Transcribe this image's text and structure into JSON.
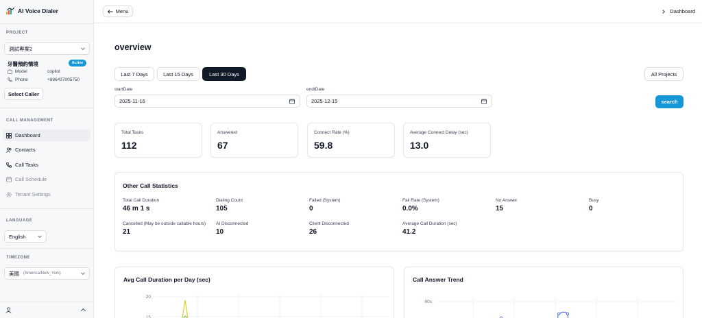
{
  "sidebar": {
    "app_title": "AI Voice Dialer",
    "project_label": "PROJECT",
    "project_select": "測試專案2",
    "scenario": {
      "name": "牙醫預約情境",
      "status": "Active",
      "model_key": "Model",
      "model_value": "copilot",
      "phone_key": "Phone",
      "phone_value": "+886437005750"
    },
    "select_caller": "Select Caller",
    "call_mgmt_label": "CALL MANAGEMENT",
    "nav": [
      {
        "label": "Dashboard",
        "icon": "dashboard-icon",
        "active": true
      },
      {
        "label": "Contacts",
        "icon": "users-icon"
      },
      {
        "label": "Call Tasks",
        "icon": "phone-icon"
      },
      {
        "label": "Call Schedule",
        "icon": "calendar-icon"
      },
      {
        "label": "Tenant Settings",
        "icon": "settings-icon"
      }
    ],
    "language_label": "LANGUAGE",
    "language": "English",
    "timezone_label": "TIMEZONE",
    "timezone_city": "美國",
    "timezone_zone": "(America/New_York)"
  },
  "topbar": {
    "menu_label": "Menu",
    "breadcrumb": "Dashboard"
  },
  "main": {
    "title": "overview",
    "ranges": [
      "Last 7 Days",
      "Last 15 Days",
      "Last 30 Days"
    ],
    "active_range": "Last 30 Days",
    "all_projects": "All Projects",
    "start_label": "startDate",
    "start_value": "2025-11-16",
    "end_label": "endtDate",
    "end_value": "2025-12-15",
    "search_label": "search",
    "stats": [
      {
        "label": "Total Tasks",
        "value": "112"
      },
      {
        "label": "Answered",
        "value": "67"
      },
      {
        "label": "Connect Rate (%)",
        "value": "59.8"
      },
      {
        "label": "Average Connect Delay (sec)",
        "value": "13.0"
      }
    ],
    "other_title": "Other Call Statistics",
    "other_stats": [
      {
        "label": "Total Call Duration",
        "value": "46 m 1 s"
      },
      {
        "label": "Dialing Count",
        "value": "105"
      },
      {
        "label": "Failed (System)",
        "value": "0"
      },
      {
        "label": "Fail Rate (System)",
        "value": "0.0%"
      },
      {
        "label": "No Answer",
        "value": "15"
      },
      {
        "label": "Busy",
        "value": "0"
      },
      {
        "label": "Cancelled (May be outside callable hours)",
        "value": "21"
      },
      {
        "label": "AI Disconnected",
        "value": "10"
      },
      {
        "label": "Client Disconnected",
        "value": "26"
      },
      {
        "label": "Average Call Duration (sec)",
        "value": "41.2"
      }
    ],
    "chart1_title": "Avg Call Duration per Day (sec)",
    "chart2_title": "Call Answer Trend"
  },
  "colors": {
    "accent": "#1597d8",
    "dark": "#111827",
    "chart1_line": "#d4cf2a",
    "chart2_line": "#3b5bdb"
  },
  "chart_data": [
    {
      "type": "line",
      "title": "Avg Call Duration per Day (sec)",
      "y_ticks": [
        20,
        15
      ],
      "series": [
        {
          "values": [
            20,
            15
          ]
        }
      ]
    },
    {
      "type": "line",
      "title": "Call Answer Trend",
      "y_ticks": [
        "80s"
      ]
    }
  ]
}
